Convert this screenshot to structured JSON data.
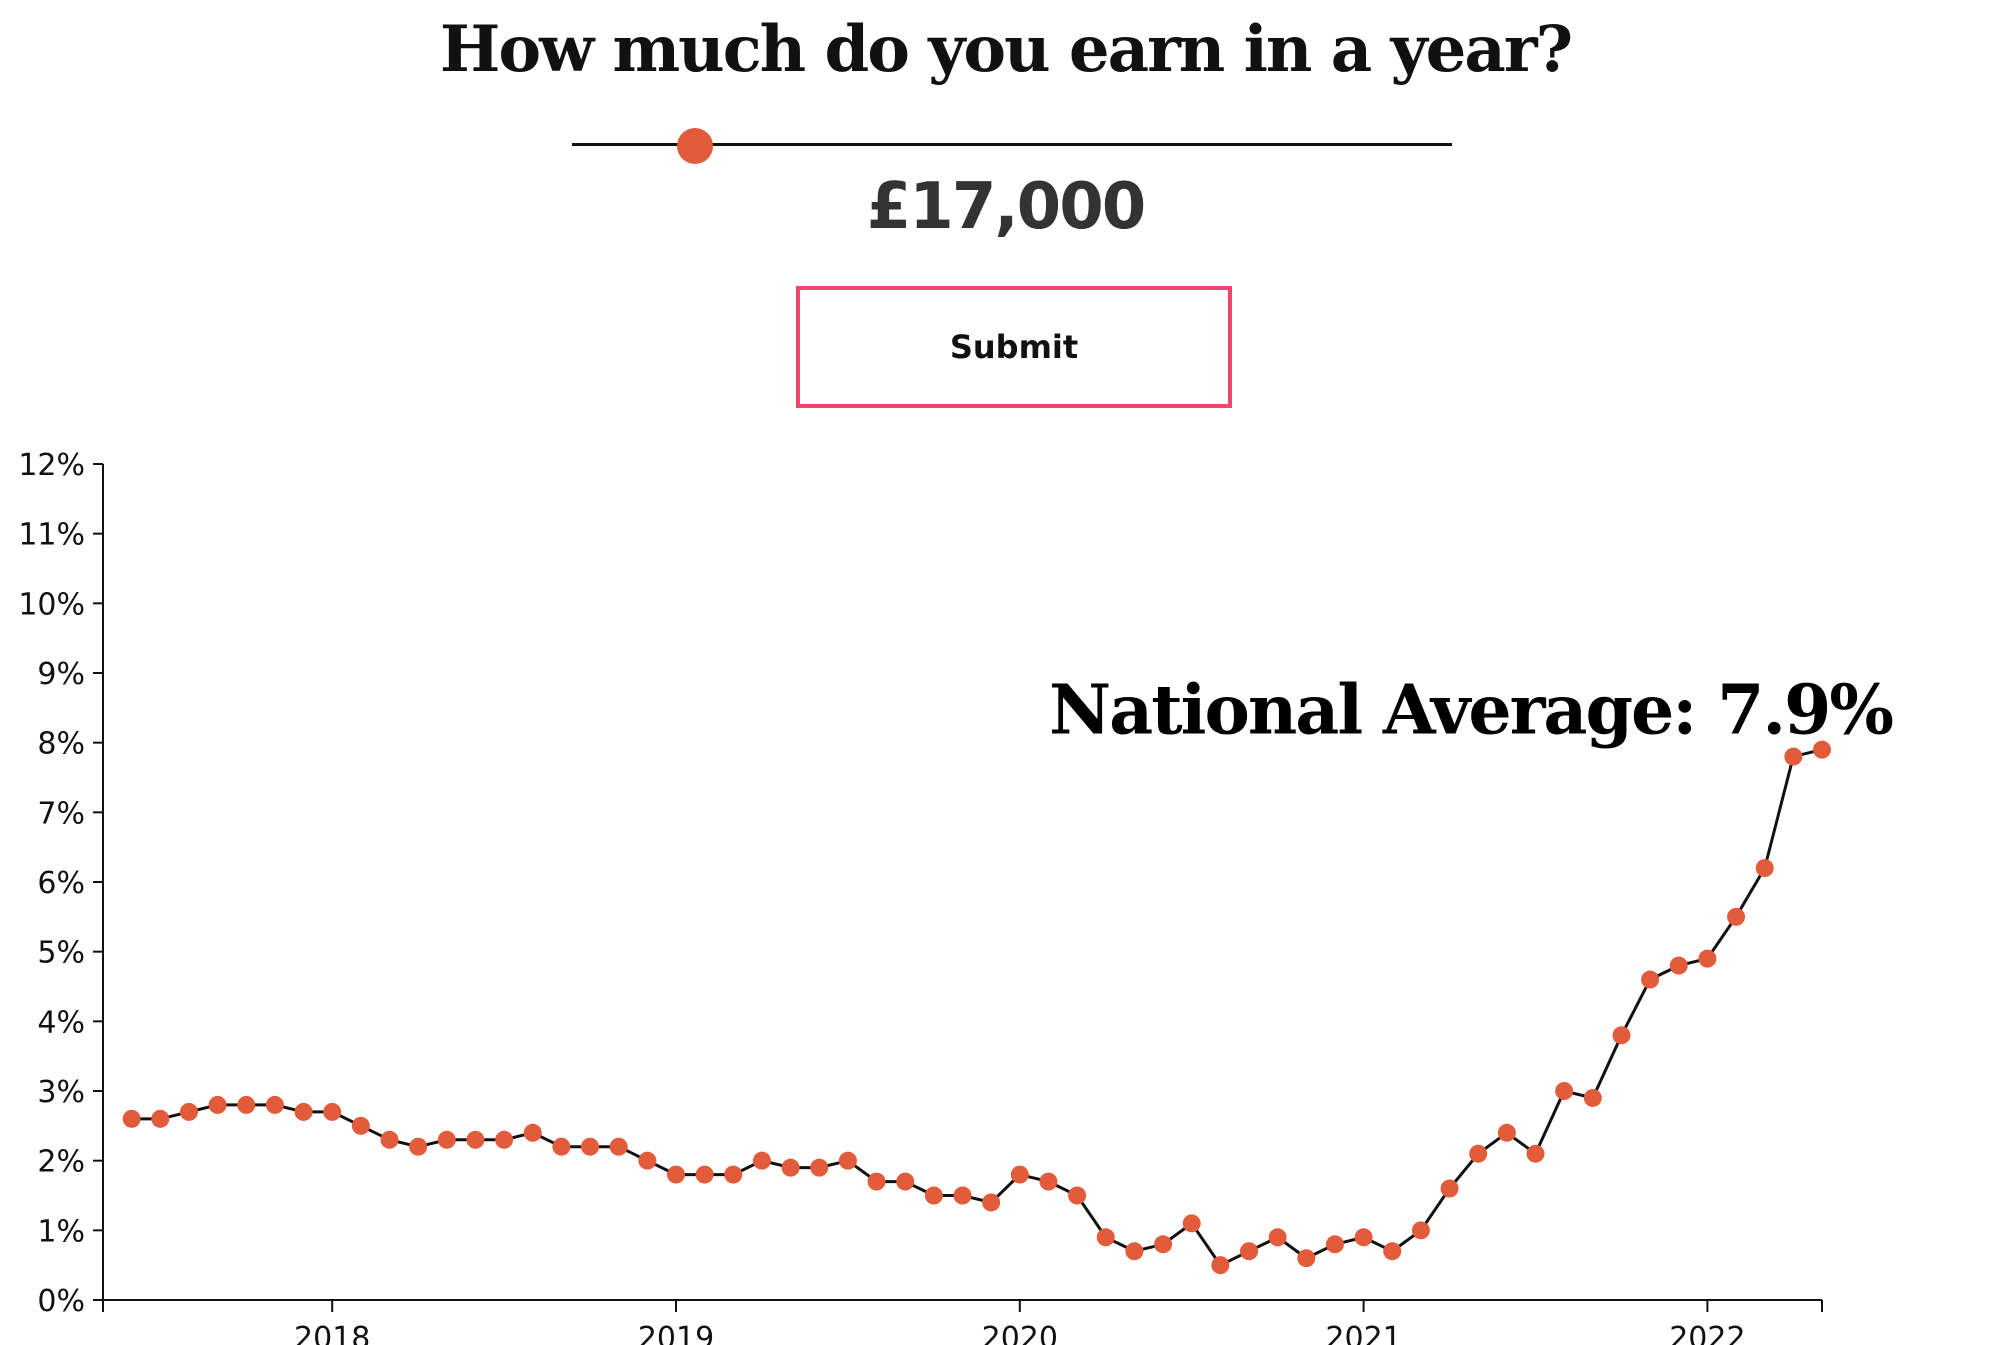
{
  "form": {
    "question": "How much do you earn in a year?",
    "salary_display": "£17,000",
    "slider_value": 17000,
    "slider_fraction": 0.14,
    "submit_label": "Submit"
  },
  "colors": {
    "accent": "#e25c3b",
    "button_border": "#f0456d",
    "line": "#111111"
  },
  "chart_data": {
    "type": "line",
    "title": "",
    "xlabel": "",
    "ylabel": "",
    "x_ticks": [
      "2018",
      "2019",
      "2020",
      "2021",
      "2022"
    ],
    "y_ticks": [
      "0%",
      "1%",
      "2%",
      "3%",
      "4%",
      "5%",
      "6%",
      "7%",
      "8%",
      "9%",
      "10%",
      "11%",
      "12%"
    ],
    "xlim": [
      "2017-05",
      "2022-05"
    ],
    "ylim": [
      0,
      12
    ],
    "grid": false,
    "annotation": "National Average: 7.9%",
    "series": [
      {
        "x": [
          "2017-06",
          "2017-07",
          "2017-08",
          "2017-09",
          "2017-10",
          "2017-11",
          "2017-12",
          "2018-01",
          "2018-02",
          "2018-03",
          "2018-04",
          "2018-05",
          "2018-06",
          "2018-07",
          "2018-08",
          "2018-09",
          "2018-10",
          "2018-11",
          "2018-12",
          "2019-01",
          "2019-02",
          "2019-03",
          "2019-04",
          "2019-05",
          "2019-06",
          "2019-07",
          "2019-08",
          "2019-09",
          "2019-10",
          "2019-11",
          "2019-12",
          "2020-01",
          "2020-02",
          "2020-03",
          "2020-04",
          "2020-05",
          "2020-06",
          "2020-07",
          "2020-08",
          "2020-09",
          "2020-10",
          "2020-11",
          "2020-12",
          "2021-01",
          "2021-02",
          "2021-03",
          "2021-04",
          "2021-05",
          "2021-06",
          "2021-07",
          "2021-08",
          "2021-09",
          "2021-10",
          "2021-11",
          "2021-12",
          "2022-01",
          "2022-02",
          "2022-03",
          "2022-04",
          "2022-05"
        ],
        "values": [
          2.6,
          2.6,
          2.7,
          2.8,
          2.8,
          2.8,
          2.7,
          2.7,
          2.5,
          2.3,
          2.2,
          2.3,
          2.3,
          2.3,
          2.4,
          2.2,
          2.2,
          2.2,
          2.0,
          1.8,
          1.8,
          1.8,
          2.0,
          1.9,
          1.9,
          2.0,
          1.7,
          1.7,
          1.5,
          1.5,
          1.4,
          1.8,
          1.7,
          1.5,
          0.9,
          0.7,
          0.8,
          1.1,
          0.5,
          0.7,
          0.9,
          0.6,
          0.8,
          0.9,
          0.7,
          1.0,
          1.6,
          2.1,
          2.4,
          2.1,
          3.0,
          2.9,
          3.8,
          4.6,
          4.8,
          4.9,
          5.5,
          6.2,
          7.8,
          7.9
        ]
      }
    ]
  }
}
